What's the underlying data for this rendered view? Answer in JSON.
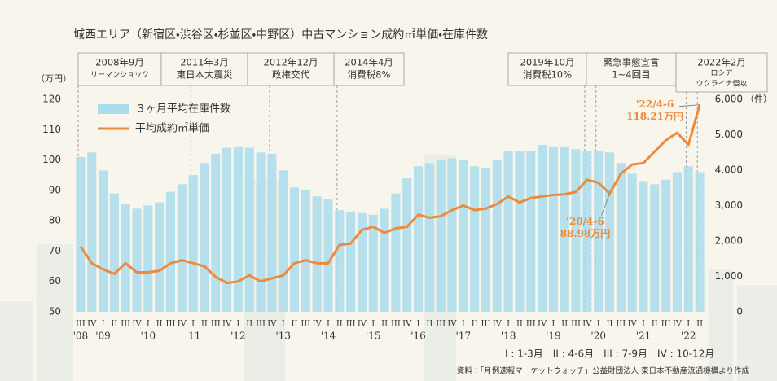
{
  "chart_data": {
    "type": "combo",
    "title": "城西エリア（新宿区・渋谷区・杉並区・中野区）中古マンション成約㎡単価・在庫件数",
    "y_unit": "（万円）",
    "y2_unit": "（件）",
    "categories": [
      "III",
      "IV",
      "I",
      "II",
      "III",
      "IV",
      "I",
      "II",
      "III",
      "IV",
      "I",
      "II",
      "III",
      "IV",
      "I",
      "II",
      "III",
      "IV",
      "I",
      "II",
      "III",
      "IV",
      "I",
      "II",
      "III",
      "IV",
      "I",
      "II",
      "III",
      "IV",
      "I",
      "II",
      "III",
      "IV",
      "I",
      "II",
      "III",
      "IV",
      "I",
      "II",
      "III",
      "IV",
      "I",
      "II",
      "III",
      "IV",
      "I",
      "II",
      "III",
      "IV",
      "I",
      "II",
      "III",
      "IV",
      "I",
      "II"
    ],
    "year_labels": [
      "'08",
      null,
      "'09",
      null,
      null,
      null,
      "'10",
      null,
      null,
      null,
      "'11",
      null,
      null,
      null,
      "'12",
      null,
      null,
      null,
      "'13",
      null,
      null,
      null,
      "'14",
      null,
      null,
      null,
      "'15",
      null,
      null,
      null,
      "'16",
      null,
      null,
      null,
      "'17",
      null,
      null,
      null,
      "'18",
      null,
      null,
      null,
      "'19",
      null,
      null,
      null,
      "'20",
      null,
      null,
      null,
      "'21",
      null,
      null,
      null,
      "'22",
      null
    ],
    "series": [
      {
        "name": "３ヶ月平均在庫件数",
        "type": "bar",
        "axis": "y2",
        "color": "#aadcec",
        "values": [
          4370,
          4500,
          3990,
          3340,
          3040,
          2910,
          3000,
          3090,
          3390,
          3600,
          3860,
          4200,
          4460,
          4630,
          4670,
          4630,
          4500,
          4460,
          3990,
          3510,
          3430,
          3260,
          3170,
          2870,
          2830,
          2790,
          2740,
          2910,
          3340,
          3770,
          4110,
          4200,
          4290,
          4330,
          4290,
          4110,
          4070,
          4290,
          4540,
          4540,
          4540,
          4710,
          4670,
          4670,
          4590,
          4540,
          4540,
          4500,
          4200,
          3900,
          3690,
          3600,
          3730,
          3940,
          4110,
          3940
        ]
      },
      {
        "name": "平均成約㎡単価",
        "type": "line",
        "axis": "y",
        "color": "#ee8a3c",
        "values": [
          71.5,
          66,
          64,
          62.5,
          66,
          63,
          63,
          63.5,
          66,
          67,
          66,
          65,
          61.5,
          59.5,
          60,
          62,
          60,
          61,
          62,
          66,
          67,
          66,
          66,
          72,
          72.5,
          77,
          78,
          76,
          77.5,
          78,
          82,
          81,
          81.5,
          83.5,
          85,
          83.5,
          84,
          85.5,
          88,
          86,
          87.5,
          88,
          88.5,
          88.7,
          89.5,
          93.5,
          92.5,
          88.98,
          95.5,
          98.5,
          99,
          102.8,
          106.5,
          109,
          105,
          118.21
        ],
        "point_labels": [
          null,
          null,
          null,
          null,
          null,
          null,
          null,
          null,
          null,
          null,
          null,
          null,
          null,
          null,
          null,
          null,
          null,
          null,
          null,
          null,
          null,
          null,
          null,
          null,
          null,
          null,
          null,
          null,
          null,
          null,
          null,
          null,
          null,
          null,
          null,
          null,
          null,
          null,
          null,
          null,
          null,
          null,
          null,
          null,
          null,
          null,
          null,
          "'20/4-6",
          null,
          null,
          null,
          null,
          null,
          null,
          null,
          "'22/4-6"
        ],
        "value_labels": [
          null,
          null,
          null,
          null,
          null,
          null,
          null,
          null,
          null,
          null,
          null,
          null,
          null,
          null,
          null,
          null,
          null,
          null,
          null,
          null,
          null,
          null,
          null,
          null,
          null,
          null,
          null,
          null,
          null,
          null,
          null,
          null,
          null,
          null,
          null,
          null,
          null,
          null,
          null,
          null,
          null,
          null,
          null,
          null,
          null,
          null,
          null,
          "88.98万円",
          null,
          null,
          null,
          null,
          null,
          null,
          null,
          "118.21万円"
        ]
      }
    ],
    "ylim": [
      50,
      120
    ],
    "yticks": [
      50,
      60,
      70,
      80,
      90,
      100,
      110,
      120
    ],
    "y2lim": [
      0,
      6000
    ],
    "y2ticks": [
      0,
      {
        "value": 1000,
        "label": "1,000"
      },
      {
        "value": 2000,
        "label": "2,000"
      },
      {
        "value": 3000,
        "label": "3,000"
      },
      {
        "value": 4000,
        "label": "4,000"
      },
      {
        "value": 5000,
        "label": "5,000"
      },
      {
        "value": 6000,
        "label": "6,000"
      }
    ],
    "events": [
      {
        "lines": [
          "2008年9月",
          "リーマンショック"
        ]
      },
      {
        "lines": [
          "2011年3月",
          "東日本大震災"
        ]
      },
      {
        "lines": [
          "2012年12月",
          "政権交代"
        ]
      },
      {
        "lines": [
          "2014年4月",
          "消費税8%"
        ]
      },
      {
        "lines": [
          "2019年10月",
          "消費税10%"
        ]
      },
      {
        "lines": [
          "緊急事態宣言",
          "1~4回目"
        ]
      },
      {
        "lines": [
          "2022年2月",
          "ロシア",
          "ウクライナ侵攻"
        ]
      }
    ],
    "legend": "top-left",
    "quarter_note": "I : 1-3月　II : 4-6月　III : 7-9月　IV : 10-12月",
    "source": "資料：「月例速報マーケットウォッチ」公益財団法人 東日本不動産流通機構より作成"
  }
}
